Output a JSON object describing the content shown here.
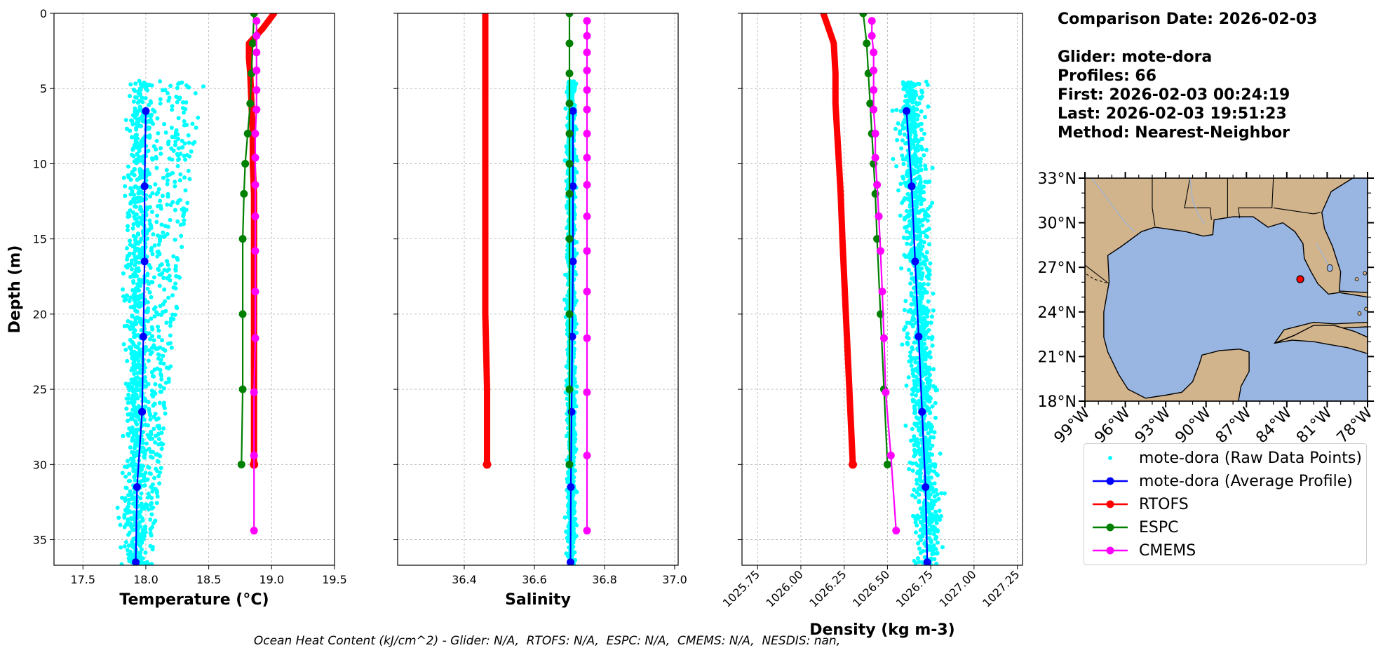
{
  "info": {
    "comparison_date": "Comparison Date: 2026-02-03",
    "glider": "Glider: mote-dora",
    "profiles": "Profiles: 66",
    "first": "First: 2026-02-03 00:24:19",
    "last": "Last: 2026-02-03 19:51:23",
    "method": "Method: Nearest-Neighbor"
  },
  "footer": "Ocean Heat Content (kJ/cm^2) - Glider: N/A,  RTOFS: N/A,  ESPC: N/A,  CMEMS: N/A,  NESDIS: nan,",
  "legend": [
    {
      "label": "mote-dora (Raw Data Points)",
      "color": "#00ffff",
      "style": "dots"
    },
    {
      "label": "mote-dora (Average Profile)",
      "color": "#0000ff",
      "style": "line-marker"
    },
    {
      "label": "RTOFS",
      "color": "#ff0000",
      "style": "line-marker"
    },
    {
      "label": "ESPC",
      "color": "#008000",
      "style": "line-marker"
    },
    {
      "label": "CMEMS",
      "color": "#ff00ff",
      "style": "line-marker"
    }
  ],
  "chart_data": [
    {
      "type": "line",
      "xlabel": "Temperature (°C)",
      "ylabel": "Depth (m)",
      "xlim": [
        17.27,
        19.5
      ],
      "ylim": [
        36.7,
        0
      ],
      "xticks": [
        "17.5",
        "18.0",
        "18.5",
        "19.0",
        "19.5"
      ],
      "xtick_values": [
        17.5,
        18.0,
        18.5,
        19.0,
        19.5
      ],
      "yticks": [
        "0",
        "5",
        "10",
        "15",
        "20",
        "25",
        "30",
        "35"
      ],
      "ytick_values": [
        0,
        5,
        10,
        15,
        20,
        25,
        30,
        35
      ],
      "grid": true,
      "raw_points": {
        "name": "mote-dora (Raw Data Points)",
        "depth_range": [
          4.5,
          36.7
        ],
        "x_center": 17.95,
        "x_spread": 0.07,
        "x_right_edge_top": 18.45,
        "x_right_edge_bottom": 18.05
      },
      "series": [
        {
          "name": "mote-dora (Average Profile)",
          "color": "#0000ff",
          "depth": [
            6.5,
            11.5,
            16.5,
            21.5,
            26.5,
            31.5,
            36.5
          ],
          "values": [
            18.0,
            17.99,
            17.99,
            17.98,
            17.97,
            17.93,
            17.92
          ]
        },
        {
          "name": "RTOFS",
          "color": "#ff0000",
          "depth": [
            0,
            1,
            2,
            3,
            4,
            6,
            8,
            10,
            12,
            15,
            20,
            25,
            30
          ],
          "values": [
            19.02,
            18.93,
            18.82,
            18.82,
            18.83,
            18.84,
            18.85,
            18.85,
            18.86,
            18.86,
            18.86,
            18.86,
            18.86
          ]
        },
        {
          "name": "ESPC",
          "color": "#008000",
          "depth": [
            0,
            2,
            4,
            6,
            8,
            10,
            12,
            15,
            20,
            25,
            30
          ],
          "values": [
            18.86,
            18.85,
            18.84,
            18.83,
            18.81,
            18.79,
            18.78,
            18.77,
            18.77,
            18.77,
            18.76
          ]
        },
        {
          "name": "CMEMS",
          "color": "#ff00ff",
          "depth": [
            0.5,
            1.5,
            2.6,
            3.8,
            5.1,
            6.4,
            8.0,
            9.6,
            11.4,
            13.5,
            15.8,
            18.5,
            21.6,
            25.2,
            29.4,
            34.4
          ],
          "values": [
            18.88,
            18.88,
            18.88,
            18.88,
            18.88,
            18.88,
            18.87,
            18.87,
            18.87,
            18.87,
            18.87,
            18.87,
            18.87,
            18.86,
            18.86,
            18.86
          ]
        }
      ]
    },
    {
      "type": "line",
      "xlabel": "Salinity",
      "ylabel": "",
      "xlim": [
        36.21,
        37.01
      ],
      "ylim": [
        36.7,
        0
      ],
      "xticks": [
        "36.4",
        "36.6",
        "36.8",
        "37.0"
      ],
      "xtick_values": [
        36.4,
        36.6,
        36.8,
        37.0
      ],
      "grid": true,
      "raw_points": {
        "name": "mote-dora (Raw Data Points)",
        "depth_range": [
          4.5,
          36.7
        ],
        "x_center": 36.705,
        "x_spread": 0.006
      },
      "series": [
        {
          "name": "mote-dora (Average Profile)",
          "color": "#0000ff",
          "depth": [
            6.5,
            11.5,
            16.5,
            21.5,
            26.5,
            31.5,
            36.5
          ],
          "values": [
            36.71,
            36.71,
            36.71,
            36.708,
            36.706,
            36.704,
            36.703
          ]
        },
        {
          "name": "RTOFS",
          "color": "#ff0000",
          "depth": [
            0,
            2,
            4,
            6,
            8,
            10,
            12,
            15,
            20,
            25,
            30
          ],
          "values": [
            36.46,
            36.46,
            36.46,
            36.46,
            36.46,
            36.46,
            36.46,
            36.46,
            36.46,
            36.465,
            36.465
          ]
        },
        {
          "name": "ESPC",
          "color": "#008000",
          "depth": [
            0,
            2,
            4,
            6,
            8,
            10,
            12,
            15,
            20,
            25,
            30
          ],
          "values": [
            36.7,
            36.7,
            36.7,
            36.7,
            36.7,
            36.7,
            36.7,
            36.7,
            36.7,
            36.7,
            36.7
          ]
        },
        {
          "name": "CMEMS",
          "color": "#ff00ff",
          "depth": [
            0.5,
            1.5,
            2.6,
            3.8,
            5.1,
            6.4,
            8.0,
            9.6,
            11.4,
            13.5,
            15.8,
            18.5,
            21.6,
            25.2,
            29.4,
            34.4
          ],
          "values": [
            36.75,
            36.75,
            36.75,
            36.75,
            36.75,
            36.75,
            36.75,
            36.75,
            36.75,
            36.75,
            36.75,
            36.75,
            36.75,
            36.75,
            36.75,
            36.75
          ]
        }
      ]
    },
    {
      "type": "line",
      "xlabel": "Density (kg m-3)",
      "ylabel": "",
      "xlim": [
        1025.66,
        1027.28
      ],
      "ylim": [
        36.7,
        0
      ],
      "xticks": [
        "1025.75",
        "1026.00",
        "1026.25",
        "1026.50",
        "1026.75",
        "1027.00",
        "1027.25"
      ],
      "xtick_values": [
        1025.75,
        1026.0,
        1026.25,
        1026.5,
        1026.75,
        1027.0,
        1027.25
      ],
      "grid": true,
      "raw_points": {
        "name": "mote-dora (Raw Data Points)",
        "depth_range": [
          4.5,
          36.7
        ],
        "x_center_top": 1026.63,
        "x_center_bottom": 1026.74,
        "x_spread": 0.035
      },
      "series": [
        {
          "name": "mote-dora (Average Profile)",
          "color": "#0000ff",
          "depth": [
            6.5,
            11.5,
            16.5,
            21.5,
            26.5,
            31.5,
            36.5
          ],
          "values": [
            1026.61,
            1026.64,
            1026.66,
            1026.68,
            1026.7,
            1026.72,
            1026.73
          ]
        },
        {
          "name": "RTOFS",
          "color": "#ff0000",
          "depth": [
            0,
            1,
            2,
            4,
            6,
            8,
            10,
            12,
            15,
            20,
            25,
            30
          ],
          "values": [
            1026.13,
            1026.16,
            1026.19,
            1026.2,
            1026.2,
            1026.21,
            1026.22,
            1026.23,
            1026.24,
            1026.26,
            1026.28,
            1026.3
          ]
        },
        {
          "name": "ESPC",
          "color": "#008000",
          "depth": [
            0,
            2,
            4,
            6,
            8,
            10,
            12,
            15,
            20,
            25,
            30
          ],
          "values": [
            1026.36,
            1026.38,
            1026.39,
            1026.4,
            1026.41,
            1026.42,
            1026.43,
            1026.44,
            1026.46,
            1026.48,
            1026.5
          ]
        },
        {
          "name": "CMEMS",
          "color": "#ff00ff",
          "depth": [
            0.5,
            1.5,
            2.6,
            3.8,
            5.1,
            6.4,
            8.0,
            9.6,
            11.4,
            13.5,
            15.8,
            18.5,
            21.6,
            25.2,
            29.4,
            34.4
          ],
          "values": [
            1026.41,
            1026.41,
            1026.42,
            1026.42,
            1026.42,
            1026.42,
            1026.43,
            1026.43,
            1026.44,
            1026.45,
            1026.46,
            1026.47,
            1026.48,
            1026.49,
            1026.52,
            1026.55
          ]
        }
      ]
    },
    {
      "type": "map",
      "lon_range": [
        -99,
        -78
      ],
      "lat_range": [
        18,
        33
      ],
      "xticks": [
        "99°W",
        "96°W",
        "93°W",
        "90°W",
        "87°W",
        "84°W",
        "81°W",
        "78°W"
      ],
      "xtick_values": [
        -99,
        -96,
        -93,
        -90,
        -87,
        -84,
        -81,
        -78
      ],
      "yticks": [
        "18°N",
        "21°N",
        "24°N",
        "27°N",
        "30°N",
        "33°N"
      ],
      "ytick_values": [
        18,
        21,
        24,
        27,
        30,
        33
      ],
      "glider_position": {
        "lon": -83.0,
        "lat": 26.2
      },
      "colors": {
        "land": "#d2b48c",
        "ocean": "#99b6e2",
        "glider_marker": "#ff0000"
      }
    }
  ]
}
